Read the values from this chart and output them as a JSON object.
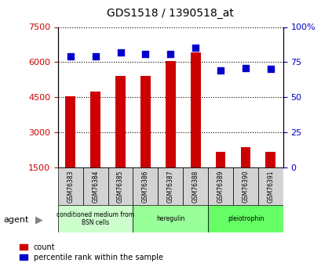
{
  "title": "GDS1518 / 1390518_at",
  "samples": [
    "GSM76383",
    "GSM76384",
    "GSM76385",
    "GSM76386",
    "GSM76387",
    "GSM76388",
    "GSM76389",
    "GSM76390",
    "GSM76391"
  ],
  "counts": [
    4550,
    4750,
    5400,
    5400,
    6050,
    6400,
    2150,
    2350,
    2150
  ],
  "percentiles": [
    79,
    79,
    82,
    81,
    81,
    85,
    69,
    71,
    70
  ],
  "groups": [
    {
      "label": "conditioned medium from\nBSN cells",
      "start": 0,
      "end": 3,
      "color": "#ccffcc"
    },
    {
      "label": "heregulin",
      "start": 3,
      "end": 6,
      "color": "#99ff99"
    },
    {
      "label": "pleiotrophin",
      "start": 6,
      "end": 9,
      "color": "#66ff66"
    }
  ],
  "ylim_left": [
    1500,
    7500
  ],
  "ylim_right": [
    0,
    100
  ],
  "yticks_left": [
    1500,
    3000,
    4500,
    6000,
    7500
  ],
  "yticks_right": [
    0,
    25,
    50,
    75,
    100
  ],
  "bar_color": "#cc0000",
  "dot_color": "#0000cc",
  "bar_width": 0.4,
  "grid_color": "#000000",
  "bg_color": "#ffffff",
  "agent_label": "agent",
  "legend_count_label": "count",
  "legend_pct_label": "percentile rank within the sample"
}
